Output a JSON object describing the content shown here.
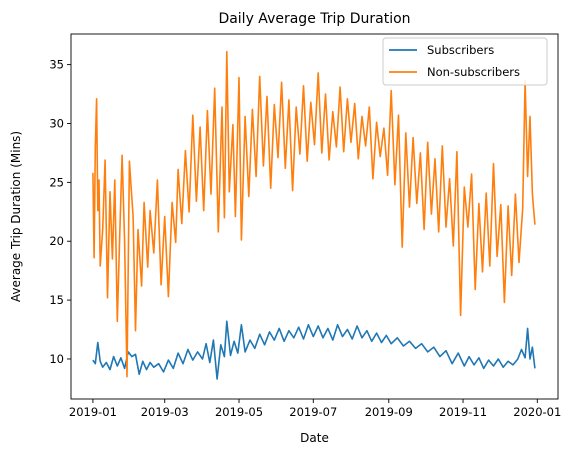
{
  "chart_data": {
    "type": "line",
    "title": "Daily Average Trip Duration",
    "xlabel": "Date",
    "ylabel": "Average Trip Duration (Mins)",
    "x_range": [
      "2018-12-14",
      "2020-01-18"
    ],
    "ylim": [
      6.6,
      37.6
    ],
    "grid": false,
    "legend_position": "top-right",
    "x_ticks": [
      "2019-01",
      "2019-03",
      "2019-05",
      "2019-07",
      "2019-09",
      "2019-11",
      "2020-01"
    ],
    "x_tick_dates": [
      "2019-01-01",
      "2019-03-01",
      "2019-05-01",
      "2019-07-01",
      "2019-09-01",
      "2019-11-01",
      "2020-01-01"
    ],
    "y_ticks": [
      10,
      15,
      20,
      25,
      30,
      35
    ],
    "series": [
      {
        "name": "Subscribers",
        "color": "#1f77b4",
        "points": [
          [
            "2019-01-01",
            9.9
          ],
          [
            "2019-01-03",
            9.6
          ],
          [
            "2019-01-05",
            11.4
          ],
          [
            "2019-01-07",
            9.8
          ],
          [
            "2019-01-09",
            9.3
          ],
          [
            "2019-01-12",
            9.7
          ],
          [
            "2019-01-15",
            9.1
          ],
          [
            "2019-01-18",
            10.2
          ],
          [
            "2019-01-21",
            9.4
          ],
          [
            "2019-01-24",
            10.1
          ],
          [
            "2019-01-27",
            9.2
          ],
          [
            "2019-01-30",
            10.6
          ],
          [
            "2019-02-02",
            10.2
          ],
          [
            "2019-02-05",
            10.4
          ],
          [
            "2019-02-08",
            8.7
          ],
          [
            "2019-02-11",
            9.8
          ],
          [
            "2019-02-14",
            9.1
          ],
          [
            "2019-02-17",
            9.7
          ],
          [
            "2019-02-20",
            9.3
          ],
          [
            "2019-02-24",
            9.6
          ],
          [
            "2019-02-28",
            8.9
          ],
          [
            "2019-03-04",
            9.9
          ],
          [
            "2019-03-08",
            9.2
          ],
          [
            "2019-03-12",
            10.5
          ],
          [
            "2019-03-16",
            9.6
          ],
          [
            "2019-03-20",
            10.8
          ],
          [
            "2019-03-24",
            9.9
          ],
          [
            "2019-03-28",
            10.6
          ],
          [
            "2019-04-01",
            10.0
          ],
          [
            "2019-04-04",
            11.3
          ],
          [
            "2019-04-07",
            9.7
          ],
          [
            "2019-04-10",
            11.6
          ],
          [
            "2019-04-13",
            8.3
          ],
          [
            "2019-04-16",
            11.2
          ],
          [
            "2019-04-19",
            10.2
          ],
          [
            "2019-04-21",
            13.2
          ],
          [
            "2019-04-24",
            10.3
          ],
          [
            "2019-04-27",
            11.5
          ],
          [
            "2019-04-30",
            10.5
          ],
          [
            "2019-05-03",
            12.9
          ],
          [
            "2019-05-06",
            10.6
          ],
          [
            "2019-05-10",
            11.6
          ],
          [
            "2019-05-14",
            10.9
          ],
          [
            "2019-05-18",
            12.1
          ],
          [
            "2019-05-22",
            11.2
          ],
          [
            "2019-05-26",
            12.3
          ],
          [
            "2019-05-30",
            11.6
          ],
          [
            "2019-06-03",
            12.6
          ],
          [
            "2019-06-07",
            11.5
          ],
          [
            "2019-06-11",
            12.4
          ],
          [
            "2019-06-15",
            11.8
          ],
          [
            "2019-06-19",
            12.7
          ],
          [
            "2019-06-23",
            11.7
          ],
          [
            "2019-06-27",
            12.9
          ],
          [
            "2019-07-01",
            11.9
          ],
          [
            "2019-07-05",
            12.8
          ],
          [
            "2019-07-09",
            11.8
          ],
          [
            "2019-07-13",
            12.6
          ],
          [
            "2019-07-17",
            11.6
          ],
          [
            "2019-07-21",
            12.9
          ],
          [
            "2019-07-25",
            11.9
          ],
          [
            "2019-07-29",
            12.5
          ],
          [
            "2019-08-02",
            11.7
          ],
          [
            "2019-08-06",
            12.8
          ],
          [
            "2019-08-10",
            11.8
          ],
          [
            "2019-08-14",
            12.4
          ],
          [
            "2019-08-18",
            11.5
          ],
          [
            "2019-08-22",
            12.2
          ],
          [
            "2019-08-26",
            11.4
          ],
          [
            "2019-08-30",
            12.0
          ],
          [
            "2019-09-03",
            11.3
          ],
          [
            "2019-09-08",
            11.8
          ],
          [
            "2019-09-13",
            11.1
          ],
          [
            "2019-09-18",
            11.5
          ],
          [
            "2019-09-23",
            10.9
          ],
          [
            "2019-09-28",
            11.3
          ],
          [
            "2019-10-03",
            10.6
          ],
          [
            "2019-10-08",
            11.0
          ],
          [
            "2019-10-13",
            10.2
          ],
          [
            "2019-10-18",
            10.7
          ],
          [
            "2019-10-23",
            9.6
          ],
          [
            "2019-10-28",
            10.5
          ],
          [
            "2019-11-02",
            9.4
          ],
          [
            "2019-11-06",
            10.2
          ],
          [
            "2019-11-10",
            9.5
          ],
          [
            "2019-11-14",
            10.1
          ],
          [
            "2019-11-18",
            9.2
          ],
          [
            "2019-11-22",
            9.9
          ],
          [
            "2019-11-26",
            9.4
          ],
          [
            "2019-11-30",
            10.0
          ],
          [
            "2019-12-04",
            9.3
          ],
          [
            "2019-12-08",
            9.8
          ],
          [
            "2019-12-12",
            9.5
          ],
          [
            "2019-12-16",
            10.0
          ],
          [
            "2019-12-19",
            10.8
          ],
          [
            "2019-12-22",
            10.1
          ],
          [
            "2019-12-24",
            12.6
          ],
          [
            "2019-12-26",
            10.0
          ],
          [
            "2019-12-28",
            11.0
          ],
          [
            "2019-12-30",
            9.2
          ]
        ]
      },
      {
        "name": "Non-subscribers",
        "color": "#ff7f0e",
        "points": [
          [
            "2019-01-01",
            25.8
          ],
          [
            "2019-01-02",
            18.6
          ],
          [
            "2019-01-03",
            28.0
          ],
          [
            "2019-01-04",
            32.1
          ],
          [
            "2019-01-05",
            22.6
          ],
          [
            "2019-01-06",
            25.2
          ],
          [
            "2019-01-07",
            17.9
          ],
          [
            "2019-01-09",
            21.0
          ],
          [
            "2019-01-11",
            26.9
          ],
          [
            "2019-01-13",
            15.2
          ],
          [
            "2019-01-15",
            24.2
          ],
          [
            "2019-01-17",
            18.5
          ],
          [
            "2019-01-19",
            25.2
          ],
          [
            "2019-01-21",
            13.2
          ],
          [
            "2019-01-23",
            20.4
          ],
          [
            "2019-01-25",
            27.3
          ],
          [
            "2019-01-27",
            20.0
          ],
          [
            "2019-01-29",
            8.5
          ],
          [
            "2019-01-31",
            26.8
          ],
          [
            "2019-02-03",
            22.1
          ],
          [
            "2019-02-05",
            12.4
          ],
          [
            "2019-02-07",
            21.0
          ],
          [
            "2019-02-10",
            16.2
          ],
          [
            "2019-02-12",
            23.3
          ],
          [
            "2019-02-15",
            17.8
          ],
          [
            "2019-02-17",
            22.6
          ],
          [
            "2019-02-20",
            19.0
          ],
          [
            "2019-02-23",
            25.2
          ],
          [
            "2019-02-26",
            16.3
          ],
          [
            "2019-03-01",
            22.1
          ],
          [
            "2019-03-04",
            15.3
          ],
          [
            "2019-03-07",
            23.3
          ],
          [
            "2019-03-10",
            19.9
          ],
          [
            "2019-03-12",
            26.1
          ],
          [
            "2019-03-15",
            21.5
          ],
          [
            "2019-03-18",
            27.7
          ],
          [
            "2019-03-21",
            22.5
          ],
          [
            "2019-03-24",
            30.7
          ],
          [
            "2019-03-27",
            23.4
          ],
          [
            "2019-03-30",
            29.7
          ],
          [
            "2019-04-02",
            22.6
          ],
          [
            "2019-04-05",
            31.1
          ],
          [
            "2019-04-08",
            24.0
          ],
          [
            "2019-04-11",
            33.0
          ],
          [
            "2019-04-14",
            20.8
          ],
          [
            "2019-04-17",
            31.4
          ],
          [
            "2019-04-19",
            22.0
          ],
          [
            "2019-04-21",
            36.1
          ],
          [
            "2019-04-23",
            24.2
          ],
          [
            "2019-04-26",
            29.9
          ],
          [
            "2019-04-28",
            22.1
          ],
          [
            "2019-05-01",
            33.9
          ],
          [
            "2019-05-03",
            20.1
          ],
          [
            "2019-05-06",
            30.6
          ],
          [
            "2019-05-09",
            23.8
          ],
          [
            "2019-05-12",
            31.2
          ],
          [
            "2019-05-15",
            25.5
          ],
          [
            "2019-05-18",
            34.0
          ],
          [
            "2019-05-21",
            26.4
          ],
          [
            "2019-05-24",
            32.3
          ],
          [
            "2019-05-27",
            24.5
          ],
          [
            "2019-05-30",
            31.6
          ],
          [
            "2019-06-02",
            27.1
          ],
          [
            "2019-06-05",
            33.5
          ],
          [
            "2019-06-08",
            26.2
          ],
          [
            "2019-06-11",
            32.0
          ],
          [
            "2019-06-14",
            24.3
          ],
          [
            "2019-06-17",
            31.4
          ],
          [
            "2019-06-20",
            27.4
          ],
          [
            "2019-06-23",
            33.2
          ],
          [
            "2019-06-26",
            26.8
          ],
          [
            "2019-06-29",
            31.8
          ],
          [
            "2019-07-02",
            28.2
          ],
          [
            "2019-07-05",
            34.3
          ],
          [
            "2019-07-08",
            27.5
          ],
          [
            "2019-07-11",
            32.5
          ],
          [
            "2019-07-14",
            26.9
          ],
          [
            "2019-07-17",
            31.0
          ],
          [
            "2019-07-20",
            28.0
          ],
          [
            "2019-07-23",
            33.1
          ],
          [
            "2019-07-26",
            27.6
          ],
          [
            "2019-07-29",
            32.1
          ],
          [
            "2019-08-01",
            28.4
          ],
          [
            "2019-08-04",
            31.7
          ],
          [
            "2019-08-07",
            27.0
          ],
          [
            "2019-08-10",
            30.6
          ],
          [
            "2019-08-13",
            28.1
          ],
          [
            "2019-08-16",
            31.4
          ],
          [
            "2019-08-19",
            25.3
          ],
          [
            "2019-08-22",
            30.1
          ],
          [
            "2019-08-25",
            27.2
          ],
          [
            "2019-08-28",
            29.6
          ],
          [
            "2019-08-31",
            25.6
          ],
          [
            "2019-09-03",
            32.8
          ],
          [
            "2019-09-06",
            24.8
          ],
          [
            "2019-09-09",
            30.7
          ],
          [
            "2019-09-12",
            19.5
          ],
          [
            "2019-09-15",
            29.2
          ],
          [
            "2019-09-18",
            22.9
          ],
          [
            "2019-09-21",
            28.8
          ],
          [
            "2019-09-24",
            23.2
          ],
          [
            "2019-09-27",
            27.5
          ],
          [
            "2019-09-30",
            21.0
          ],
          [
            "2019-10-03",
            28.4
          ],
          [
            "2019-10-06",
            22.3
          ],
          [
            "2019-10-09",
            27.0
          ],
          [
            "2019-10-12",
            20.8
          ],
          [
            "2019-10-15",
            28.1
          ],
          [
            "2019-10-18",
            21.2
          ],
          [
            "2019-10-21",
            25.3
          ],
          [
            "2019-10-24",
            19.6
          ],
          [
            "2019-10-27",
            27.6
          ],
          [
            "2019-10-30",
            13.7
          ],
          [
            "2019-11-02",
            24.6
          ],
          [
            "2019-11-05",
            21.2
          ],
          [
            "2019-11-08",
            25.7
          ],
          [
            "2019-11-11",
            15.9
          ],
          [
            "2019-11-14",
            23.2
          ],
          [
            "2019-11-17",
            17.4
          ],
          [
            "2019-11-20",
            24.1
          ],
          [
            "2019-11-23",
            17.9
          ],
          [
            "2019-11-26",
            26.6
          ],
          [
            "2019-11-29",
            18.7
          ],
          [
            "2019-12-02",
            23.1
          ],
          [
            "2019-12-05",
            14.8
          ],
          [
            "2019-12-08",
            23.0
          ],
          [
            "2019-12-11",
            17.1
          ],
          [
            "2019-12-14",
            24.0
          ],
          [
            "2019-12-17",
            18.2
          ],
          [
            "2019-12-20",
            22.8
          ],
          [
            "2019-12-22",
            33.6
          ],
          [
            "2019-12-24",
            25.5
          ],
          [
            "2019-12-26",
            30.6
          ],
          [
            "2019-12-28",
            24.0
          ],
          [
            "2019-12-30",
            21.4
          ]
        ]
      }
    ]
  }
}
